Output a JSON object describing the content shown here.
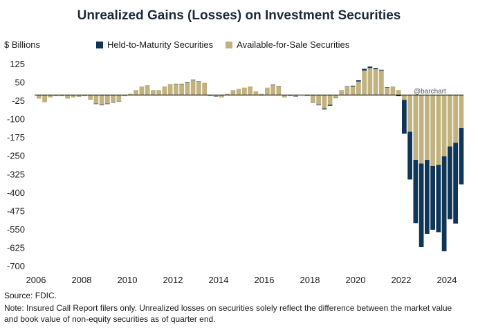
{
  "title": "Unrealized Gains (Losses) on Investment Securities",
  "units_label": "$ Billions",
  "watermark": "@barchart",
  "source": "Source: FDIC.",
  "note": "Note: Insured Call Report filers only. Unrealized losses on securities solely reflect the difference between the market value and book value of non-equity securities as of quarter end.",
  "colors": {
    "htm": "#0f3557",
    "afs": "#c2b280",
    "axis": "#000000"
  },
  "chart_data": {
    "type": "bar",
    "stacked": true,
    "title": "Unrealized Gains (Losses) on Investment Securities",
    "ylabel": "$ Billions",
    "ylim": [
      -700,
      125
    ],
    "yticks": [
      125,
      50,
      -25,
      -100,
      -175,
      -250,
      -325,
      -400,
      -475,
      -550,
      -625,
      -700
    ],
    "xticks": [
      "2006",
      "2008",
      "2010",
      "2012",
      "2014",
      "2016",
      "2018",
      "2020",
      "2022",
      "2024"
    ],
    "legend_position": "top",
    "categories": [
      "2006Q1",
      "2006Q2",
      "2006Q3",
      "2006Q4",
      "2007Q1",
      "2007Q2",
      "2007Q3",
      "2007Q4",
      "2008Q1",
      "2008Q2",
      "2008Q3",
      "2008Q4",
      "2009Q1",
      "2009Q2",
      "2009Q3",
      "2009Q4",
      "2010Q1",
      "2010Q2",
      "2010Q3",
      "2010Q4",
      "2011Q1",
      "2011Q2",
      "2011Q3",
      "2011Q4",
      "2012Q1",
      "2012Q2",
      "2012Q3",
      "2012Q4",
      "2013Q1",
      "2013Q2",
      "2013Q3",
      "2013Q4",
      "2014Q1",
      "2014Q2",
      "2014Q3",
      "2014Q4",
      "2015Q1",
      "2015Q2",
      "2015Q3",
      "2015Q4",
      "2016Q1",
      "2016Q2",
      "2016Q3",
      "2016Q4",
      "2017Q1",
      "2017Q2",
      "2017Q3",
      "2017Q4",
      "2018Q1",
      "2018Q2",
      "2018Q3",
      "2018Q4",
      "2019Q1",
      "2019Q2",
      "2019Q3",
      "2019Q4",
      "2020Q1",
      "2020Q2",
      "2020Q3",
      "2020Q4",
      "2021Q1",
      "2021Q2",
      "2021Q3",
      "2021Q4",
      "2022Q1",
      "2022Q2",
      "2022Q3",
      "2022Q4",
      "2023Q1",
      "2023Q2",
      "2023Q3",
      "2023Q4",
      "2024Q1",
      "2024Q2",
      "2024Q3"
    ],
    "series": [
      {
        "name": "Held-to-Maturity Securities",
        "values": [
          0,
          0,
          0,
          0,
          0,
          0,
          0,
          0,
          0,
          0,
          -2,
          -2,
          -2,
          -1,
          -1,
          0,
          0,
          0,
          0,
          0,
          0,
          0,
          0,
          0,
          1,
          1,
          2,
          2,
          1,
          0,
          0,
          -1,
          0,
          0,
          0,
          0,
          0,
          0,
          0,
          -1,
          0,
          2,
          1,
          0,
          0,
          -1,
          0,
          0,
          -1,
          -2,
          -4,
          -4,
          -2,
          0,
          1,
          3,
          5,
          7,
          6,
          5,
          3,
          2,
          0,
          -5,
          -138,
          -195,
          -258,
          -341,
          -302,
          -260,
          -275,
          -388,
          -297,
          -330,
          -230
        ]
      },
      {
        "name": "Available-for-Sale Securities",
        "values": [
          -15,
          -30,
          -10,
          -5,
          -5,
          -15,
          -10,
          -8,
          -5,
          -20,
          -35,
          -40,
          -35,
          -30,
          -25,
          -5,
          5,
          20,
          35,
          40,
          20,
          20,
          35,
          45,
          45,
          45,
          50,
          60,
          55,
          50,
          -5,
          -5,
          -10,
          5,
          20,
          25,
          30,
          35,
          15,
          5,
          30,
          40,
          35,
          -10,
          -5,
          -5,
          0,
          -5,
          -30,
          -40,
          -55,
          -40,
          -10,
          20,
          35,
          35,
          55,
          100,
          110,
          105,
          100,
          30,
          35,
          20,
          -20,
          -150,
          -265,
          -280,
          -265,
          -290,
          -285,
          -250,
          -210,
          -195,
          -135
        ]
      }
    ]
  }
}
